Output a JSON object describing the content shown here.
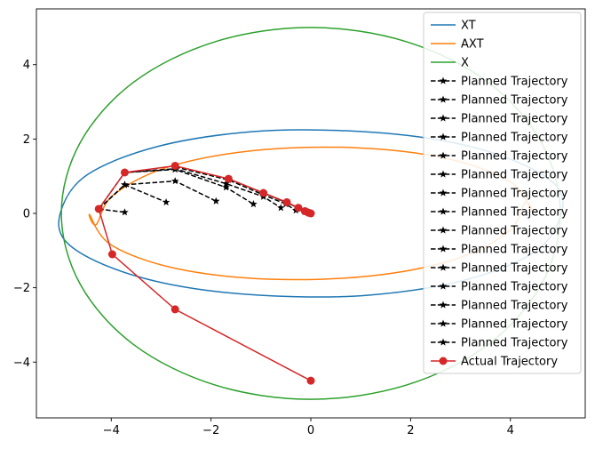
{
  "chart_data": {
    "type": "line",
    "title": "",
    "xlabel": "",
    "ylabel": "",
    "xlim": [
      -5.5,
      5.5
    ],
    "ylim": [
      -5.5,
      5.5
    ],
    "x_ticks": [
      -4,
      -2,
      0,
      2,
      4
    ],
    "x_tick_labels": [
      "−4",
      "−2",
      "0",
      "2",
      "4"
    ],
    "y_ticks": [
      -4,
      -2,
      0,
      2,
      4
    ],
    "y_tick_labels": [
      "−4",
      "−2",
      "0",
      "2",
      "4"
    ],
    "grid": false,
    "legend_position": "top-right",
    "ellipses": [
      {
        "name": "XT",
        "color": "#1f77b4",
        "points": [
          [
            -5.0,
            0.1
          ],
          [
            -4.47,
            1.05
          ],
          [
            -3.07,
            1.8
          ],
          [
            -1.16,
            2.2
          ],
          [
            0.74,
            2.22
          ],
          [
            2.54,
            1.98
          ],
          [
            3.98,
            1.47
          ],
          [
            4.92,
            0.74
          ],
          [
            5.0,
            -0.1
          ],
          [
            4.47,
            -1.05
          ],
          [
            3.07,
            -1.8
          ],
          [
            1.16,
            -2.2
          ],
          [
            -0.74,
            -2.22
          ],
          [
            -2.54,
            -1.98
          ],
          [
            -3.98,
            -1.47
          ],
          [
            -4.92,
            -0.74
          ]
        ]
      },
      {
        "name": "AXT",
        "color": "#ff7f0e",
        "points": [
          [
            -4.3,
            -0.3
          ],
          [
            -3.97,
            0.48
          ],
          [
            -2.9,
            1.23
          ],
          [
            -1.21,
            1.68
          ],
          [
            0.83,
            1.77
          ],
          [
            2.71,
            1.48
          ],
          [
            4.0,
            0.85
          ],
          [
            4.43,
            0.04
          ],
          [
            4.3,
            0.3
          ],
          [
            3.97,
            -0.48
          ],
          [
            2.9,
            -1.23
          ],
          [
            1.21,
            -1.68
          ],
          [
            -0.83,
            -1.77
          ],
          [
            -2.71,
            -1.48
          ],
          [
            -4.0,
            -0.85
          ],
          [
            -4.43,
            -0.04
          ]
        ]
      },
      {
        "name": "X",
        "color": "#2ca02c",
        "points": [
          [
            -5.0,
            0.0
          ],
          [
            -4.62,
            1.91
          ],
          [
            -3.54,
            3.54
          ],
          [
            -1.91,
            4.62
          ],
          [
            0.0,
            5.0
          ],
          [
            1.91,
            4.62
          ],
          [
            3.54,
            3.54
          ],
          [
            4.62,
            1.91
          ],
          [
            5.0,
            0.0
          ],
          [
            4.62,
            -1.91
          ],
          [
            3.54,
            -3.54
          ],
          [
            1.91,
            -4.62
          ],
          [
            0.0,
            -5.0
          ],
          [
            -1.91,
            -4.62
          ],
          [
            -3.54,
            -3.54
          ],
          [
            -4.62,
            -1.91
          ]
        ]
      }
    ],
    "planned_trajectories": [
      {
        "name": "Planned Trajectory",
        "color": "#000000",
        "points": [
          [
            -4.25,
            0.12
          ],
          [
            -3.73,
            0.03
          ]
        ]
      },
      {
        "name": "Planned Trajectory",
        "color": "#000000",
        "points": [
          [
            -4.25,
            0.12
          ],
          [
            -3.73,
            0.77
          ],
          [
            -2.9,
            0.3
          ]
        ]
      },
      {
        "name": "Planned Trajectory",
        "color": "#000000",
        "points": [
          [
            -4.25,
            0.12
          ],
          [
            -3.73,
            0.77
          ],
          [
            -2.72,
            0.87
          ],
          [
            -1.9,
            0.33
          ]
        ]
      },
      {
        "name": "Planned Trajectory",
        "color": "#000000",
        "points": [
          [
            -4.25,
            0.12
          ],
          [
            -3.73,
            1.1
          ],
          [
            -2.72,
            1.18
          ],
          [
            -1.7,
            0.7
          ],
          [
            -1.15,
            0.25
          ]
        ]
      },
      {
        "name": "Planned Trajectory",
        "color": "#000000",
        "points": [
          [
            -3.73,
            1.1
          ],
          [
            -2.72,
            1.2
          ],
          [
            -1.7,
            0.8
          ],
          [
            -0.95,
            0.45
          ],
          [
            -0.6,
            0.15
          ]
        ]
      },
      {
        "name": "Planned Trajectory",
        "color": "#000000",
        "points": [
          [
            -2.72,
            1.25
          ],
          [
            -1.65,
            0.9
          ],
          [
            -0.95,
            0.5
          ],
          [
            -0.5,
            0.25
          ],
          [
            -0.3,
            0.08
          ]
        ]
      },
      {
        "name": "Planned Trajectory",
        "color": "#000000",
        "points": [
          [
            -1.65,
            0.93
          ],
          [
            -0.95,
            0.55
          ],
          [
            -0.5,
            0.3
          ],
          [
            -0.25,
            0.15
          ],
          [
            -0.12,
            0.04
          ]
        ]
      },
      {
        "name": "Planned Trajectory",
        "color": "#000000",
        "points": [
          [
            -0.95,
            0.55
          ],
          [
            -0.5,
            0.3
          ],
          [
            -0.25,
            0.15
          ],
          [
            -0.1,
            0.06
          ],
          [
            -0.05,
            0.02
          ]
        ]
      },
      {
        "name": "Planned Trajectory",
        "color": "#000000",
        "points": [
          [
            -0.48,
            0.3
          ],
          [
            -0.25,
            0.14
          ],
          [
            -0.1,
            0.06
          ],
          [
            -0.04,
            0.02
          ],
          [
            0.0,
            0.0
          ]
        ]
      },
      {
        "name": "Planned Trajectory",
        "color": "#000000",
        "points": [
          [
            -0.25,
            0.15
          ],
          [
            -0.1,
            0.06
          ],
          [
            -0.04,
            0.02
          ],
          [
            0.0,
            0.01
          ]
        ]
      },
      {
        "name": "Planned Trajectory",
        "color": "#000000",
        "points": [
          [
            -0.12,
            0.06
          ],
          [
            -0.05,
            0.03
          ],
          [
            -0.01,
            0.01
          ],
          [
            0.0,
            0.0
          ]
        ]
      },
      {
        "name": "Planned Trajectory",
        "color": "#000000",
        "points": [
          [
            -0.06,
            0.03
          ],
          [
            -0.02,
            0.01
          ],
          [
            0.0,
            0.0
          ]
        ]
      },
      {
        "name": "Planned Trajectory",
        "color": "#000000",
        "points": [
          [
            -0.02,
            0.01
          ],
          [
            0.0,
            0.0
          ]
        ]
      },
      {
        "name": "Planned Trajectory",
        "color": "#000000",
        "points": [
          [
            -0.01,
            0.0
          ],
          [
            0.0,
            0.0
          ]
        ]
      },
      {
        "name": "Planned Trajectory",
        "color": "#000000",
        "points": [
          [
            0.0,
            0.0
          ],
          [
            0.0,
            0.0
          ]
        ]
      }
    ],
    "actual_trajectory": {
      "name": "Actual Trajectory",
      "color": "#d62728",
      "points": [
        [
          0.0,
          -4.5
        ],
        [
          -2.72,
          -2.58
        ],
        [
          -3.98,
          -1.1
        ],
        [
          -4.25,
          0.12
        ],
        [
          -3.73,
          1.1
        ],
        [
          -2.72,
          1.28
        ],
        [
          -1.65,
          0.93
        ],
        [
          -0.95,
          0.55
        ],
        [
          -0.48,
          0.3
        ],
        [
          -0.25,
          0.15
        ],
        [
          -0.12,
          0.06
        ],
        [
          -0.05,
          0.02
        ],
        [
          0.0,
          0.0
        ]
      ]
    },
    "legend_entries": [
      {
        "label": "XT",
        "color": "#1f77b4",
        "marker": "none",
        "dash": "solid"
      },
      {
        "label": "AXT",
        "color": "#ff7f0e",
        "marker": "none",
        "dash": "solid"
      },
      {
        "label": "X",
        "color": "#2ca02c",
        "marker": "none",
        "dash": "solid"
      },
      {
        "label": "Planned Trajectory",
        "color": "#000000",
        "marker": "star",
        "dash": "dashed"
      },
      {
        "label": "Planned Trajectory",
        "color": "#000000",
        "marker": "star",
        "dash": "dashed"
      },
      {
        "label": "Planned Trajectory",
        "color": "#000000",
        "marker": "star",
        "dash": "dashed"
      },
      {
        "label": "Planned Trajectory",
        "color": "#000000",
        "marker": "star",
        "dash": "dashed"
      },
      {
        "label": "Planned Trajectory",
        "color": "#000000",
        "marker": "star",
        "dash": "dashed"
      },
      {
        "label": "Planned Trajectory",
        "color": "#000000",
        "marker": "star",
        "dash": "dashed"
      },
      {
        "label": "Planned Trajectory",
        "color": "#000000",
        "marker": "star",
        "dash": "dashed"
      },
      {
        "label": "Planned Trajectory",
        "color": "#000000",
        "marker": "star",
        "dash": "dashed"
      },
      {
        "label": "Planned Trajectory",
        "color": "#000000",
        "marker": "star",
        "dash": "dashed"
      },
      {
        "label": "Planned Trajectory",
        "color": "#000000",
        "marker": "star",
        "dash": "dashed"
      },
      {
        "label": "Planned Trajectory",
        "color": "#000000",
        "marker": "star",
        "dash": "dashed"
      },
      {
        "label": "Planned Trajectory",
        "color": "#000000",
        "marker": "star",
        "dash": "dashed"
      },
      {
        "label": "Planned Trajectory",
        "color": "#000000",
        "marker": "star",
        "dash": "dashed"
      },
      {
        "label": "Planned Trajectory",
        "color": "#000000",
        "marker": "star",
        "dash": "dashed"
      },
      {
        "label": "Planned Trajectory",
        "color": "#000000",
        "marker": "star",
        "dash": "dashed"
      },
      {
        "label": "Actual Trajectory",
        "color": "#d62728",
        "marker": "circle",
        "dash": "solid"
      }
    ]
  }
}
